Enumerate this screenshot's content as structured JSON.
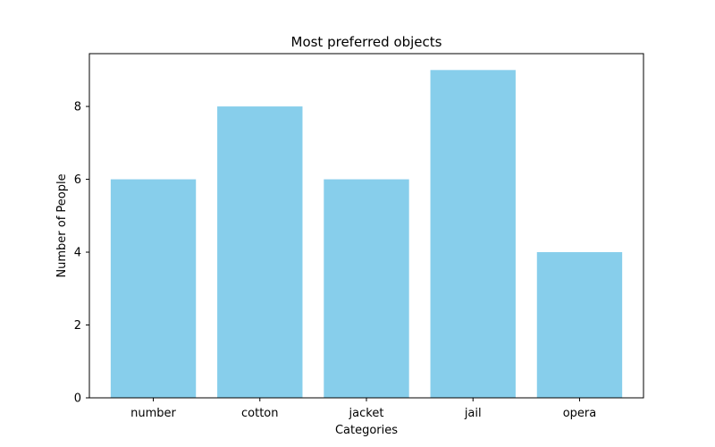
{
  "chart_data": {
    "type": "bar",
    "title": "Most preferred objects",
    "xlabel": "Categories",
    "ylabel": "Number of People",
    "categories": [
      "number",
      "cotton",
      "jacket",
      "jail",
      "opera"
    ],
    "values": [
      6,
      8,
      6,
      9,
      4
    ],
    "ylim": [
      0,
      9.45
    ],
    "yticks": [
      0,
      2,
      4,
      6,
      8
    ],
    "bar_color": "#87CEEB",
    "grid": false,
    "legend": "none"
  }
}
